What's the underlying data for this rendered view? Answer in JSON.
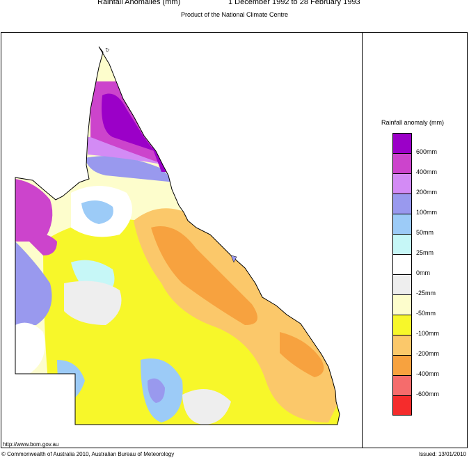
{
  "header": {
    "title": "Rainfall Anomalies (mm)",
    "period": "1 December 1992 to 28 February 1993",
    "subtitle": "Product of the National Climate Centre"
  },
  "legend": {
    "title": "Rainfall anomaly (mm)",
    "classes": [
      {
        "color": "#9b00c8",
        "label": "600mm"
      },
      {
        "color": "#cc44cc",
        "label": "400mm"
      },
      {
        "color": "#d38bf5",
        "label": "200mm"
      },
      {
        "color": "#9999ee",
        "label": "100mm"
      },
      {
        "color": "#9ccbf7",
        "label": "50mm"
      },
      {
        "color": "#c6f7f7",
        "label": "25mm"
      },
      {
        "color": "#ffffff",
        "label": "0mm"
      },
      {
        "color": "#eeeeee",
        "label": "-25mm"
      },
      {
        "color": "#fdfdcc",
        "label": "-50mm"
      },
      {
        "color": "#f7f72a",
        "label": "-100mm"
      },
      {
        "color": "#fbc86a",
        "label": "-200mm"
      },
      {
        "color": "#f7a23f",
        "label": "-400mm"
      },
      {
        "color": "#f56c6c",
        "label": "-600mm"
      },
      {
        "color": "#f52c2c",
        "label": ""
      }
    ]
  },
  "footer": {
    "url": "http://www.bom.gov.au",
    "copyright": "© Commonwealth of Australia 2010, Australian Bureau of Meteorology",
    "issued": "Issued: 13/01/2010"
  }
}
